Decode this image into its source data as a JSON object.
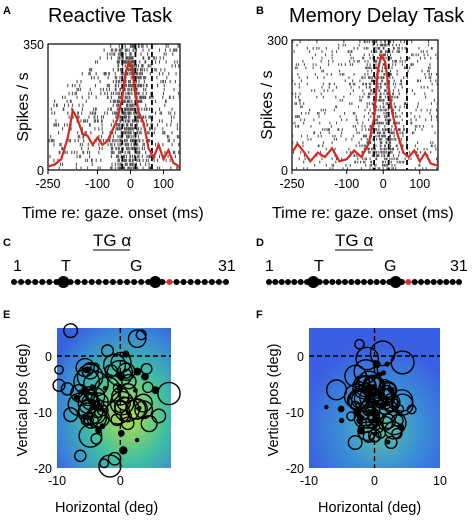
{
  "panels": {
    "A": {
      "letter": "A",
      "title": "Reactive Task"
    },
    "B": {
      "letter": "B",
      "title": "Memory Delay Task"
    },
    "C": {
      "letter": "C",
      "title": "TG α",
      "start": "1",
      "end": "31",
      "t_label": "T",
      "g_label": "G"
    },
    "D": {
      "letter": "D",
      "title": "TG α",
      "start": "1",
      "end": "31",
      "t_label": "T",
      "g_label": "G"
    },
    "E": {
      "letter": "E"
    },
    "F": {
      "letter": "F"
    }
  },
  "colors": {
    "sdf": "#d42a20",
    "raster": "#555555",
    "dot": "#000000",
    "red_dot": "#e0302a",
    "field_blue": "#3a6fe0",
    "field_green": "#b7df46"
  },
  "chart_data": [
    {
      "id": "A",
      "type": "line",
      "title": "Reactive Task",
      "xlabel": "Time re: gaze. onset (ms)",
      "ylabel": "Spikes / s",
      "xlim": [
        -250,
        150
      ],
      "ylim": [
        0,
        350
      ],
      "xticks": [
        -250,
        -100,
        0,
        100
      ],
      "yticks": [
        0,
        350
      ],
      "x": [
        -250,
        -230,
        -210,
        -190,
        -175,
        -160,
        -145,
        -130,
        -115,
        -100,
        -85,
        -70,
        -55,
        -40,
        -25,
        -15,
        -5,
        5,
        15,
        25,
        40,
        55,
        70,
        85,
        100,
        115,
        130,
        150
      ],
      "values": [
        10,
        15,
        30,
        90,
        165,
        140,
        100,
        95,
        70,
        90,
        70,
        80,
        110,
        140,
        200,
        270,
        300,
        285,
        210,
        160,
        130,
        60,
        35,
        70,
        30,
        55,
        20,
        8
      ],
      "raster_trials": 32,
      "raster_start_x": [
        -60,
        -80,
        -90,
        -100,
        -120,
        -40,
        -140,
        -150,
        -170,
        -180,
        -200,
        -210,
        -215,
        -220,
        -230,
        -235,
        -240,
        -245,
        -250,
        -250,
        -250,
        -250,
        -250,
        -250,
        -250,
        -250,
        -250,
        -250,
        -250,
        -250,
        -250,
        -250
      ]
    },
    {
      "id": "B",
      "type": "line",
      "title": "Memory Delay Task",
      "xlabel": "Time re: gaze. onset (ms)",
      "ylabel": "Spikes / s",
      "xlim": [
        -250,
        150
      ],
      "ylim": [
        0,
        300
      ],
      "xticks": [
        -250,
        -100,
        0,
        100
      ],
      "yticks": [
        0,
        300
      ],
      "x": [
        -250,
        -235,
        -220,
        -200,
        -180,
        -160,
        -140,
        -120,
        -100,
        -80,
        -60,
        -40,
        -25,
        -15,
        -5,
        5,
        15,
        25,
        40,
        55,
        70,
        85,
        100,
        115,
        130,
        150
      ],
      "values": [
        40,
        60,
        45,
        20,
        40,
        30,
        50,
        20,
        25,
        45,
        30,
        60,
        120,
        230,
        265,
        250,
        190,
        130,
        80,
        40,
        30,
        45,
        20,
        40,
        15,
        10
      ],
      "raster_trials": 40
    },
    {
      "id": "E",
      "type": "scatter",
      "xlabel": "Horizontal (deg)",
      "ylabel": "Vertical pos (deg)",
      "xlim": [
        -10,
        8
      ],
      "ylim": [
        -20,
        5
      ],
      "xticks": [
        -10,
        0
      ],
      "yticks": [
        0,
        -10,
        -20
      ],
      "center": [
        -1.5,
        -8
      ],
      "spread": [
        4,
        5
      ],
      "n": 90
    },
    {
      "id": "F",
      "type": "scatter",
      "xlabel": "Horizontal (deg)",
      "ylabel": "Vertical pos (deg)",
      "xlim": [
        -10,
        10
      ],
      "ylim": [
        -20,
        5
      ],
      "xticks": [
        -10,
        0,
        10
      ],
      "yticks": [
        0,
        -10,
        -20
      ],
      "center": [
        -0.5,
        -8
      ],
      "spread": [
        2.5,
        4
      ],
      "n": 90
    }
  ]
}
